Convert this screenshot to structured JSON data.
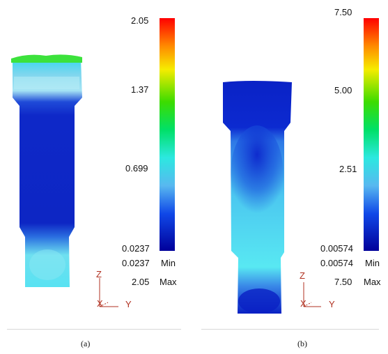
{
  "panels": [
    {
      "caption": "(a)",
      "colorbar_ticks": [
        "2.05",
        "1.37",
        "0.699",
        "0.0237"
      ],
      "min_label": "Min",
      "max_label": "Max",
      "min_value": "0.0237",
      "max_value": "2.05",
      "axis_z": "Z",
      "axis_x": "X",
      "axis_y": "Y"
    },
    {
      "caption": "(b)",
      "colorbar_ticks": [
        "7.50",
        "5.00",
        "2.51",
        "0.00574"
      ],
      "min_label": "Min",
      "max_label": "Max",
      "min_value": "0.00574",
      "max_value": "7.50",
      "axis_z": "Z",
      "axis_x": "X",
      "axis_y": "Y"
    }
  ],
  "colors": {
    "colorbar_top": "#ff0000",
    "colorbar_bottom": "#00008b",
    "axis_red": "#b03020",
    "deep_blue": "#0a1ec8",
    "cyan": "#50e8f0"
  }
}
